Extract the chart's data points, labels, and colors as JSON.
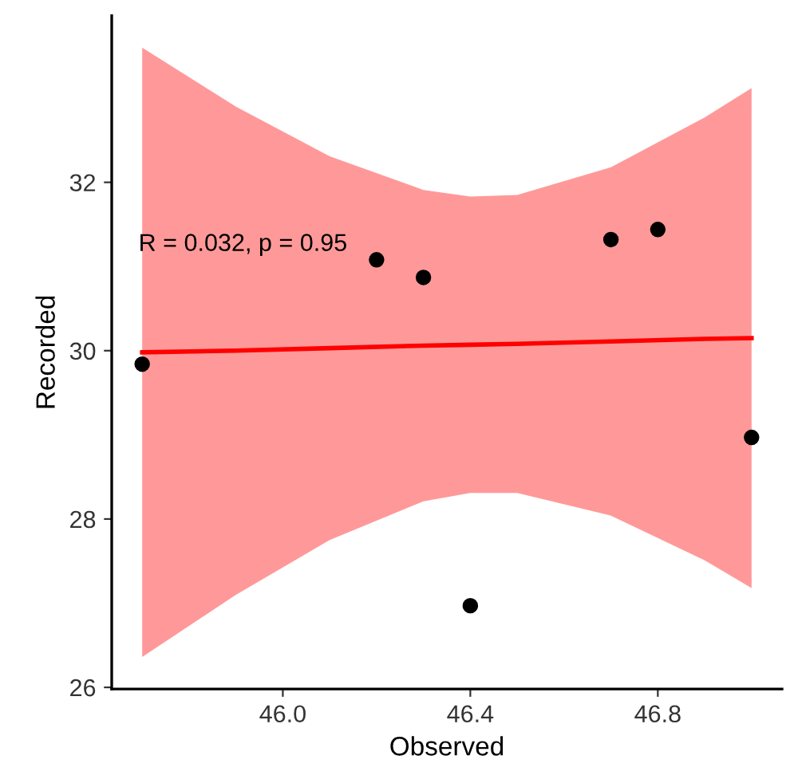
{
  "chart_data": {
    "type": "scatter",
    "xlabel": "Observed",
    "ylabel": "Recorded",
    "annotations": [
      "R = 0.032, p = 0.95"
    ],
    "series": [
      {
        "color": "#000000",
        "marker": "circle",
        "x": [
          45.7,
          46.2,
          46.3,
          46.4,
          46.7,
          46.8,
          47.0
        ],
        "values": [
          29.84,
          31.08,
          30.87,
          26.97,
          31.32,
          31.44,
          28.97
        ]
      },
      {
        "type": "line",
        "marker": "none",
        "color": "#ff0000",
        "x": [
          45.7,
          45.9,
          46.1,
          46.3,
          46.4,
          46.5,
          46.7,
          46.9,
          47.0
        ],
        "values": [
          29.98,
          30.0,
          30.03,
          30.06,
          30.07,
          30.08,
          30.11,
          30.14,
          30.15
        ],
        "lower": [
          26.36,
          27.1,
          27.75,
          28.21,
          28.31,
          28.31,
          28.04,
          27.51,
          27.18
        ],
        "upper": [
          33.6,
          32.9,
          32.31,
          31.91,
          31.83,
          31.85,
          32.18,
          32.77,
          33.12
        ]
      }
    ],
    "xlim": [
      45.635,
      47.065
    ],
    "ylim": [
      25.98,
      33.98
    ],
    "xticks": [
      {
        "value": 46.0,
        "label": "46.0"
      },
      {
        "value": 46.4,
        "label": "46.4"
      },
      {
        "value": 46.8,
        "label": "46.8"
      }
    ],
    "yticks": [
      26,
      28,
      30,
      32
    ],
    "grid": false,
    "legend": false
  }
}
